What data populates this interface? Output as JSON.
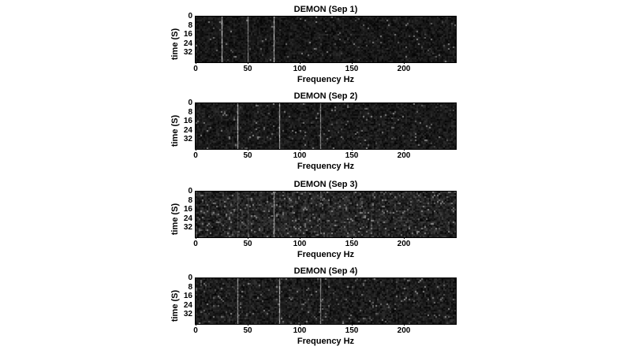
{
  "figure": {
    "background": "#ffffff",
    "text_color": "#000000",
    "panel_count": 4
  },
  "chart_data": [
    {
      "type": "heatmap",
      "title": "DEMON (Sep 1)",
      "xlabel": "Frequency Hz",
      "ylabel": "time (S)",
      "xlim": [
        0,
        250
      ],
      "ylim": [
        0,
        40
      ],
      "xticks": [
        0,
        50,
        100,
        150,
        200
      ],
      "yticks": [
        0,
        8,
        16,
        24,
        32
      ],
      "colormap": "gray",
      "grid": false,
      "legend": "none",
      "noise": {
        "mean": 0.09,
        "spread": 0.1,
        "speckle": 0.02
      },
      "tonal_lines_hz": [
        {
          "freq": 25,
          "intensity": 0.95
        },
        {
          "freq": 50,
          "intensity": 0.6
        },
        {
          "freq": 75,
          "intensity": 0.9
        }
      ]
    },
    {
      "type": "heatmap",
      "title": "DEMON (Sep 2)",
      "xlabel": "Frequency Hz",
      "ylabel": "time (S)",
      "xlim": [
        0,
        250
      ],
      "ylim": [
        0,
        40
      ],
      "xticks": [
        0,
        50,
        100,
        150,
        200
      ],
      "yticks": [
        0,
        8,
        16,
        24,
        32
      ],
      "colormap": "gray",
      "grid": false,
      "legend": "none",
      "noise": {
        "mean": 0.1,
        "spread": 0.11,
        "speckle": 0.03
      },
      "tonal_lines_hz": [
        {
          "freq": 40,
          "intensity": 0.9
        },
        {
          "freq": 80,
          "intensity": 0.9
        },
        {
          "freq": 120,
          "intensity": 0.65
        }
      ]
    },
    {
      "type": "heatmap",
      "title": "DEMON (Sep 3)",
      "xlabel": "Frequency Hz",
      "ylabel": "time (S)",
      "xlim": [
        0,
        250
      ],
      "ylim": [
        0,
        40
      ],
      "xticks": [
        0,
        50,
        100,
        150,
        200
      ],
      "yticks": [
        0,
        8,
        16,
        24,
        32
      ],
      "colormap": "gray",
      "grid": false,
      "legend": "none",
      "noise": {
        "mean": 0.14,
        "spread": 0.15,
        "speckle": 0.07
      },
      "tonal_lines_hz": [
        {
          "freq": 40,
          "intensity": 0.35
        },
        {
          "freq": 50,
          "intensity": 0.3
        },
        {
          "freq": 75,
          "intensity": 0.75
        },
        {
          "freq": 120,
          "intensity": 0.35
        }
      ]
    },
    {
      "type": "heatmap",
      "title": "DEMON (Sep 4)",
      "xlabel": "Frequency Hz",
      "ylabel": "time (S)",
      "xlim": [
        0,
        250
      ],
      "ylim": [
        0,
        40
      ],
      "xticks": [
        0,
        50,
        100,
        150,
        200
      ],
      "yticks": [
        0,
        8,
        16,
        24,
        32
      ],
      "colormap": "gray",
      "grid": false,
      "legend": "none",
      "noise": {
        "mean": 0.11,
        "spread": 0.12,
        "speckle": 0.04
      },
      "tonal_lines_hz": [
        {
          "freq": 40,
          "intensity": 0.7
        },
        {
          "freq": 80,
          "intensity": 0.85
        },
        {
          "freq": 120,
          "intensity": 0.6
        }
      ]
    }
  ]
}
